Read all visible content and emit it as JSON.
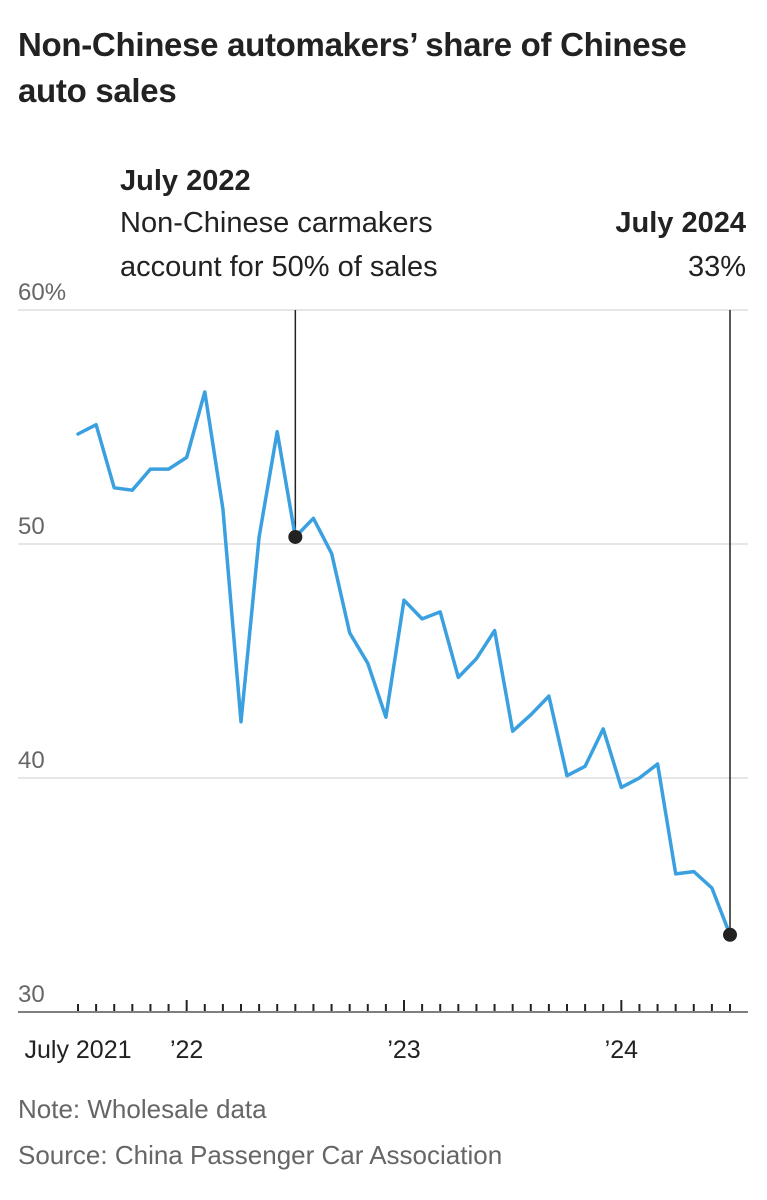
{
  "title": "Non-Chinese automakers’ share of Chinese auto sales",
  "note": "Note: Wholesale data",
  "source": "Source: China Passenger Car Association",
  "colors": {
    "line": "#3aa0e0",
    "grid": "#dddddd",
    "text": "#222222",
    "muted": "#666666"
  },
  "annotations": [
    {
      "date": "2022-07",
      "heading": "July 2022",
      "text_line1": "Non-Chinese carmakers",
      "text_line2": "account for 50% of sales",
      "value": 50.3
    },
    {
      "date": "2024-07",
      "heading": "July 2024",
      "text_line1": "33%",
      "value": 33.3
    }
  ],
  "chart_data": {
    "type": "line",
    "title": "Non-Chinese automakers’ share of Chinese auto sales",
    "xlabel": "",
    "ylabel": "",
    "ylim": [
      30,
      60
    ],
    "yticks": [
      {
        "value": 60,
        "label": "60%"
      },
      {
        "value": 50,
        "label": "50"
      },
      {
        "value": 40,
        "label": "40"
      },
      {
        "value": 30,
        "label": "30"
      }
    ],
    "xticks": [
      {
        "date": "2021-07",
        "label": "July 2021"
      },
      {
        "date": "2022-01",
        "label": "’22"
      },
      {
        "date": "2023-01",
        "label": "’23"
      },
      {
        "date": "2024-01",
        "label": "’24"
      }
    ],
    "grid": true,
    "x_start": "2021-07",
    "x_end": "2024-07",
    "series": [
      {
        "x": [
          "2021-07",
          "2021-08",
          "2021-09",
          "2021-10",
          "2021-11",
          "2021-12",
          "2022-01",
          "2022-02",
          "2022-03",
          "2022-04",
          "2022-05",
          "2022-06",
          "2022-07",
          "2022-08",
          "2022-09",
          "2022-10",
          "2022-11",
          "2022-12",
          "2023-01",
          "2023-02",
          "2023-03",
          "2023-04",
          "2023-05",
          "2023-06",
          "2023-07",
          "2023-08",
          "2023-09",
          "2023-10",
          "2023-11",
          "2023-12",
          "2024-01",
          "2024-02",
          "2024-03",
          "2024-04",
          "2024-05",
          "2024-06",
          "2024-07"
        ],
        "values": [
          54.7,
          55.1,
          52.4,
          52.3,
          53.2,
          53.2,
          53.7,
          56.5,
          51.5,
          42.4,
          50.3,
          54.8,
          50.3,
          51.1,
          49.6,
          46.2,
          44.9,
          42.6,
          47.6,
          46.8,
          47.1,
          44.3,
          45.1,
          46.3,
          42.0,
          42.7,
          43.5,
          40.1,
          40.5,
          42.1,
          39.6,
          40.0,
          40.6,
          35.9,
          36.0,
          35.3,
          33.3
        ]
      }
    ]
  }
}
